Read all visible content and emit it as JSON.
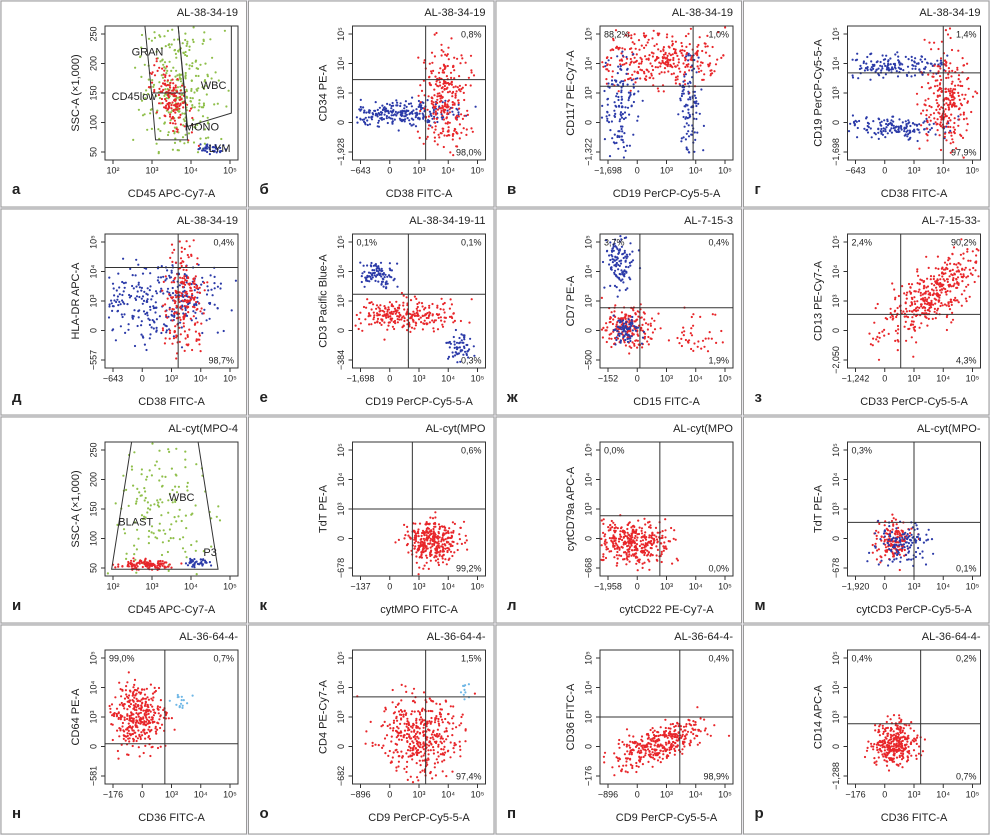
{
  "panels": [
    {
      "letter": "а",
      "sample": "AL-38-34-19",
      "x_label": "CD45 APC-Cy7-A",
      "y_label": "SSC-A (×1,000)",
      "x_ticks": [
        "10²",
        "10³",
        "10⁴",
        "10⁵"
      ],
      "y_ticks": [
        "50",
        "100",
        "150",
        "200",
        "250"
      ],
      "gates": [
        "GRAN",
        "CD45low",
        "WBC",
        "MONO",
        "LYM"
      ]
    },
    {
      "letter": "б",
      "sample": "AL-38-34-19",
      "x_label": "CD38 FITC-A",
      "y_label": "CD34 PE-A",
      "x_ticks": [
        "−643",
        "0",
        "10³",
        "10⁴",
        "10⁵"
      ],
      "y_ticks": [
        "−1,928",
        "0",
        "10³",
        "10⁴",
        "10⁵"
      ],
      "quadrants": {
        "ur": "0,8%",
        "lr": "98,0%"
      }
    },
    {
      "letter": "в",
      "sample": "AL-38-34-19",
      "x_label": "CD19 PerCP-Cy5-5-A",
      "y_label": "CD117 PE-Cy7-A",
      "x_ticks": [
        "−1,698",
        "0",
        "10³",
        "10⁴",
        "10⁵"
      ],
      "y_ticks": [
        "−1,322",
        "0",
        "10³",
        "10⁴",
        "10⁵"
      ],
      "quadrants": {
        "ul": "88,2%",
        "ur": "1,0%"
      }
    },
    {
      "letter": "г",
      "sample": "AL-38-34-19",
      "x_label": "CD38 FITC-A",
      "y_label": "CD19 PerCP-Cy5-5-A",
      "x_ticks": [
        "−643",
        "0",
        "10³",
        "10⁴",
        "10⁵"
      ],
      "y_ticks": [
        "−1,698",
        "0",
        "10³",
        "10⁴",
        "10⁵"
      ],
      "quadrants": {
        "ur": "1,4%",
        "lr": "97,9%"
      }
    },
    {
      "letter": "д",
      "sample": "AL-38-34-19",
      "x_label": "CD38 FITC-A",
      "y_label": "HLA-DR APC-A",
      "x_ticks": [
        "−643",
        "0",
        "10³",
        "10⁴",
        "10⁵"
      ],
      "y_ticks": [
        "−557",
        "0",
        "10³",
        "10⁴",
        "10⁵"
      ],
      "quadrants": {
        "ur": "0,4%",
        "lr": "98,7%"
      }
    },
    {
      "letter": "е",
      "sample": "AL-38-34-19-11",
      "x_label": "CD19 PerCP-Cy5-5-A",
      "y_label": "CD3 Pacific Blue-A",
      "x_ticks": [
        "−1,698",
        "0",
        "10³",
        "10⁴",
        "10⁵"
      ],
      "y_ticks": [
        "−384",
        "0",
        "10³",
        "10⁴",
        "10⁵"
      ],
      "quadrants": {
        "ul": "0,1%",
        "ur": "0,1%",
        "lr": "0,3%"
      }
    },
    {
      "letter": "ж",
      "sample": "AL-7-15-3",
      "x_label": "CD15 FITC-A",
      "y_label": "CD7 PE-A",
      "x_ticks": [
        "−152",
        "0",
        "10³",
        "10⁴",
        "10⁵"
      ],
      "y_ticks": [
        "−500",
        "0",
        "10³",
        "10⁴",
        "10⁵"
      ],
      "quadrants": {
        "ul": "3,7%",
        "ur": "0,4%",
        "lr": "1,9%"
      }
    },
    {
      "letter": "з",
      "sample": "AL-7-15-33-",
      "x_label": "CD33 PerCP-Cy5-5-A",
      "y_label": "CD13 PE-Cy7-A",
      "x_ticks": [
        "−1,242",
        "0",
        "10³",
        "10⁴",
        "10⁵"
      ],
      "y_ticks": [
        "−2,050",
        "0",
        "10³",
        "10⁴",
        "10⁵"
      ],
      "quadrants": {
        "ul": "2,4%",
        "ur": "90,2%",
        "lr": "4,3%"
      }
    },
    {
      "letter": "и",
      "sample": "AL-cyt(MPO-4",
      "x_label": "CD45 APC-Cy7-A",
      "y_label": "SSC-A (×1,000)",
      "x_ticks": [
        "10²",
        "10³",
        "10⁴",
        "10⁵"
      ],
      "y_ticks": [
        "50",
        "100",
        "150",
        "200",
        "250"
      ],
      "gates": [
        "BLAST",
        "WBC",
        "P3"
      ]
    },
    {
      "letter": "к",
      "sample": "AL-cyt(MPO",
      "x_label": "cytMPO FITC-A",
      "y_label": "TdT PE-A",
      "x_ticks": [
        "−137",
        "0",
        "10³",
        "10⁴",
        "10⁵"
      ],
      "y_ticks": [
        "−678",
        "0",
        "10³",
        "10⁴",
        "10⁵"
      ],
      "quadrants": {
        "ur": "0,6%",
        "lr": "99,2%"
      }
    },
    {
      "letter": "л",
      "sample": "AL-cyt(MPO",
      "x_label": "cytCD22 PE-Cy7-A",
      "y_label": "cytCD79a APC-A",
      "x_ticks": [
        "−1,958",
        "0",
        "10³",
        "10⁴",
        "10⁵"
      ],
      "y_ticks": [
        "−668",
        "0",
        "10³",
        "10⁴",
        "10⁵"
      ],
      "quadrants": {
        "ul": "0,0%",
        "lr": "0,0%"
      }
    },
    {
      "letter": "м",
      "sample": "AL-cyt(MPO-",
      "x_label": "cytCD3 PerCP-Cy5-5-A",
      "y_label": "TdT PE-A",
      "x_ticks": [
        "−1,920",
        "0",
        "10³",
        "10⁴",
        "10⁵"
      ],
      "y_ticks": [
        "−678",
        "0",
        "10³",
        "10⁴",
        "10⁵"
      ],
      "quadrants": {
        "ul": "0,3%",
        "lr": "0,1%"
      }
    },
    {
      "letter": "н",
      "sample": "AL-36-64-4-",
      "x_label": "CD36 FITC-A",
      "y_label": "CD64 PE-A",
      "x_ticks": [
        "−176",
        "0",
        "10³",
        "10⁴",
        "10⁵"
      ],
      "y_ticks": [
        "−581",
        "0",
        "10³",
        "10⁴",
        "10⁵"
      ],
      "quadrants": {
        "ul": "99,0%",
        "ur": "0,7%"
      }
    },
    {
      "letter": "о",
      "sample": "AL-36-64-4-",
      "x_label": "CD9 PerCP-Cy5-5-A",
      "y_label": "CD4 PE-Cy7-A",
      "x_ticks": [
        "−896",
        "0",
        "10³",
        "10⁴",
        "10⁵"
      ],
      "y_ticks": [
        "−682",
        "0",
        "10³",
        "10⁴",
        "10⁵"
      ],
      "quadrants": {
        "ur": "1,5%",
        "lr": "97,4%"
      }
    },
    {
      "letter": "п",
      "sample": "AL-36-64-4-",
      "x_label": "CD9 PerCP-Cy5-5-A",
      "y_label": "CD36 FITC-A",
      "x_ticks": [
        "−896",
        "0",
        "10³",
        "10⁴",
        "10⁵"
      ],
      "y_ticks": [
        "−176",
        "0",
        "10³",
        "10⁴",
        "10⁵"
      ],
      "quadrants": {
        "ur": "0,4%",
        "lr": "98,9%"
      }
    },
    {
      "letter": "р",
      "sample": "AL-36-64-4-",
      "x_label": "CD36 FITC-A",
      "y_label": "CD14 APC-A",
      "x_ticks": [
        "−176",
        "0",
        "10³",
        "10⁴",
        "10⁵"
      ],
      "y_ticks": [
        "−1,288",
        "0",
        "10³",
        "10⁴",
        "10⁵"
      ],
      "quadrants": {
        "ul": "0,4%",
        "ur": "0,2%",
        "lr": "0,7%"
      }
    }
  ]
}
